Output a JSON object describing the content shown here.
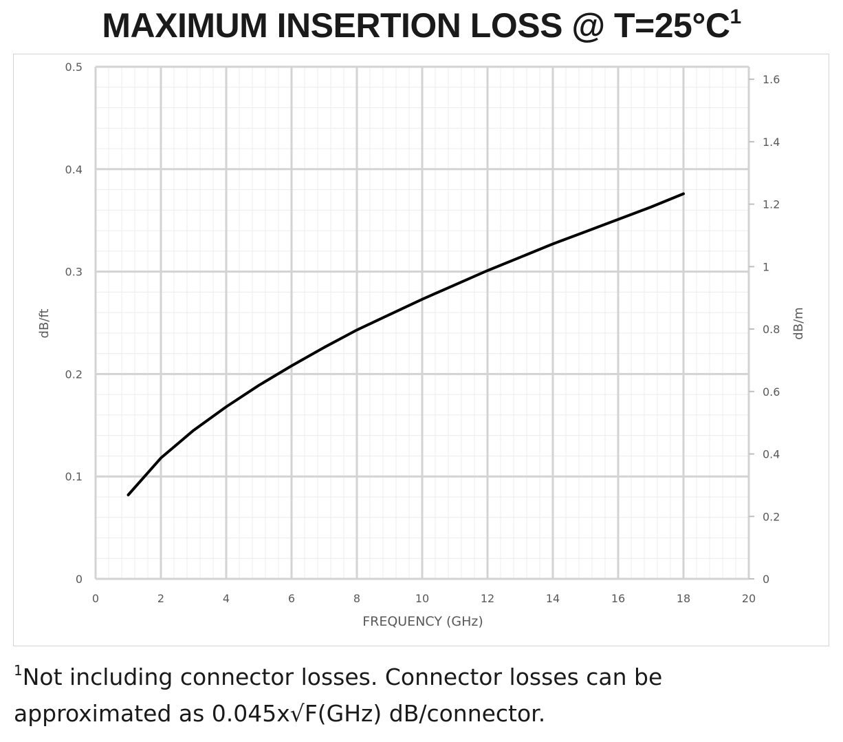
{
  "title": {
    "text": "MAXIMUM INSERTION LOSS @ T=25°C",
    "superscript": "1"
  },
  "footnote": {
    "marker": "1",
    "line1": "Not including connector losses.  Connector losses can be",
    "line2": "approximated as 0.045x√F(GHz) dB/connector."
  },
  "chart_data": {
    "type": "line",
    "title": "MAXIMUM INSERTION LOSS @ T=25°C",
    "xlabel": "FREQUENCY (GHz)",
    "ylabel": "dB/ft",
    "y2label": "dB/m",
    "xlim": [
      0,
      20
    ],
    "ylim": [
      0,
      0.5
    ],
    "y2lim": [
      0,
      1.64
    ],
    "x_ticks": [
      "0",
      "2",
      "4",
      "6",
      "8",
      "10",
      "12",
      "14",
      "16",
      "18",
      "20"
    ],
    "y_ticks": [
      "0",
      "0.1",
      "0.2",
      "0.3",
      "0.4",
      "0.5"
    ],
    "y2_ticks": [
      "0",
      "0.2",
      "0.4",
      "0.6",
      "0.8",
      "1",
      "1.2",
      "1.4",
      "1.6"
    ],
    "grid": true,
    "line_color": "#000000",
    "x": [
      1,
      2,
      3,
      4,
      5,
      6,
      7,
      8,
      9,
      10,
      11,
      12,
      13,
      14,
      15,
      16,
      17,
      18
    ],
    "y": [
      0.082,
      0.118,
      0.145,
      0.168,
      0.189,
      0.208,
      0.226,
      0.243,
      0.258,
      0.273,
      0.287,
      0.301,
      0.314,
      0.327,
      0.339,
      0.351,
      0.363,
      0.376
    ]
  }
}
